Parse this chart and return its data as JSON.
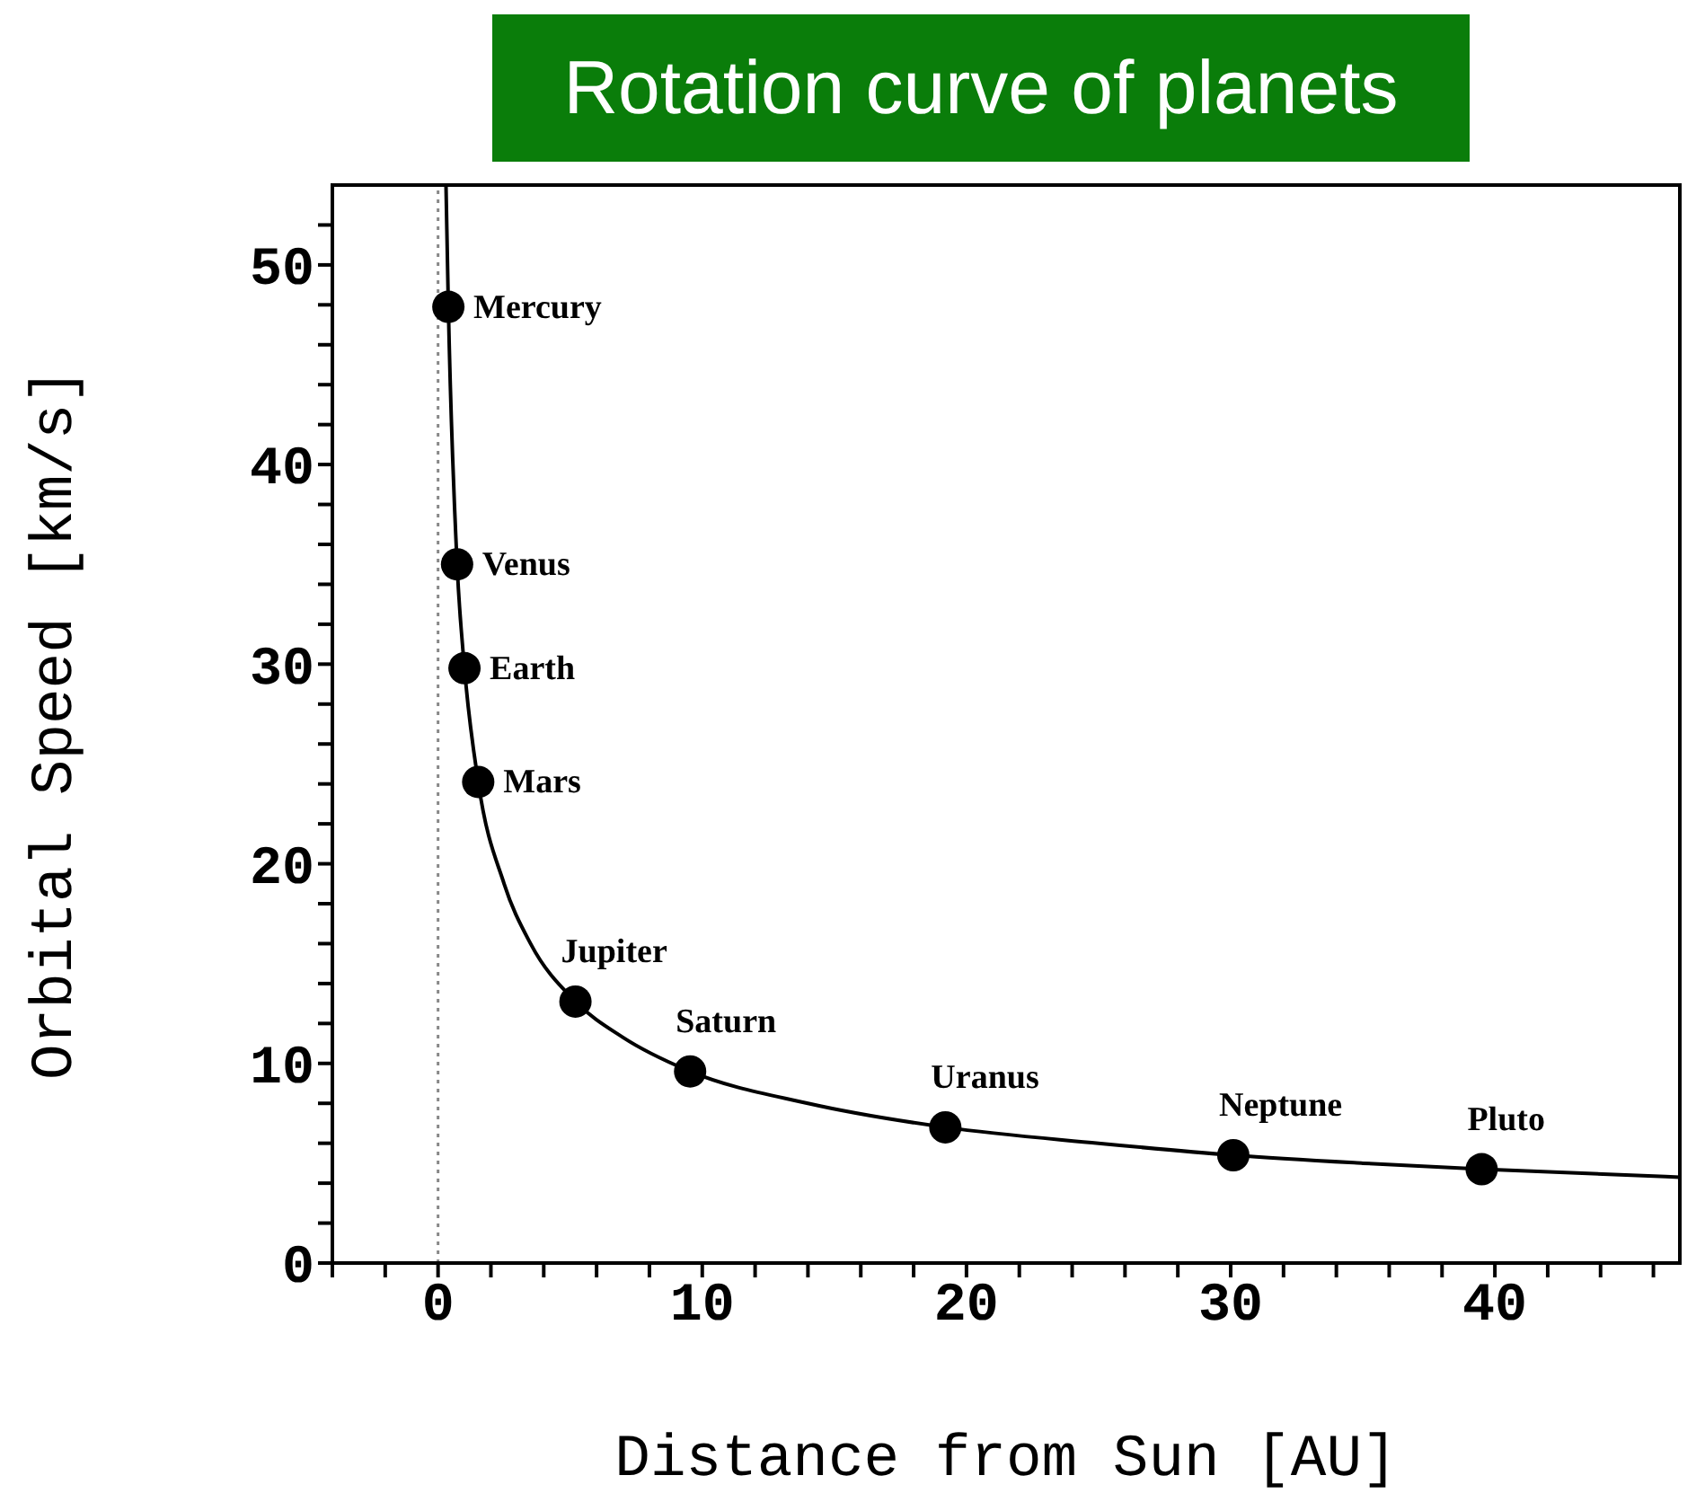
{
  "chart_data": {
    "type": "scatter",
    "title": "Rotation curve of planets",
    "xlabel": "Distance from Sun [AU]",
    "ylabel": "Orbital Speed [km/s]",
    "xlim": [
      -4,
      47
    ],
    "ylim": [
      0,
      54
    ],
    "xticks": [
      {
        "value": -4,
        "label": null
      },
      {
        "value": -2,
        "label": null
      },
      0,
      {
        "value": 2,
        "label": null
      },
      {
        "value": 4,
        "label": null
      },
      {
        "value": 6,
        "label": null
      },
      {
        "value": 8,
        "label": null
      },
      10,
      {
        "value": 12,
        "label": null
      },
      {
        "value": 14,
        "label": null
      },
      {
        "value": 16,
        "label": null
      },
      {
        "value": 18,
        "label": null
      },
      20,
      {
        "value": 22,
        "label": null
      },
      {
        "value": 24,
        "label": null
      },
      {
        "value": 26,
        "label": null
      },
      {
        "value": 28,
        "label": null
      },
      30,
      {
        "value": 32,
        "label": null
      },
      {
        "value": 34,
        "label": null
      },
      {
        "value": 36,
        "label": null
      },
      {
        "value": 38,
        "label": null
      },
      40,
      {
        "value": 42,
        "label": null
      },
      {
        "value": 44,
        "label": null
      },
      {
        "value": 46,
        "label": null
      }
    ],
    "yticks": [
      0,
      {
        "value": 2,
        "label": null
      },
      {
        "value": 4,
        "label": null
      },
      {
        "value": 6,
        "label": null
      },
      {
        "value": 8,
        "label": null
      },
      10,
      {
        "value": 12,
        "label": null
      },
      {
        "value": 14,
        "label": null
      },
      {
        "value": 16,
        "label": null
      },
      {
        "value": 18,
        "label": null
      },
      20,
      {
        "value": 22,
        "label": null
      },
      {
        "value": 24,
        "label": null
      },
      {
        "value": 26,
        "label": null
      },
      {
        "value": 28,
        "label": null
      },
      30,
      {
        "value": 32,
        "label": null
      },
      {
        "value": 34,
        "label": null
      },
      {
        "value": 36,
        "label": null
      },
      {
        "value": 38,
        "label": null
      },
      40,
      {
        "value": 42,
        "label": null
      },
      {
        "value": 44,
        "label": null
      },
      {
        "value": 46,
        "label": null
      },
      {
        "value": 48,
        "label": null
      },
      50,
      {
        "value": 52,
        "label": null
      }
    ],
    "marker": "circle",
    "series": [
      {
        "color": "#000000",
        "x": [
          0.39,
          0.72,
          1,
          1.52,
          5.2,
          9.54,
          19.2,
          30.1,
          39.5
        ],
        "values": [
          47.9,
          35,
          29.8,
          24.1,
          13.1,
          9.6,
          6.8,
          5.4,
          4.7
        ]
      },
      {
        "type": "line",
        "color": "#000000",
        "marker": "none",
        "x": [
          0.3,
          0.39,
          0.72,
          1,
          1.52,
          2.5,
          3.5,
          5.2,
          7,
          9.54,
          14,
          19.2,
          25,
          30.1,
          35,
          39.5,
          47
        ],
        "values": [
          54,
          47.9,
          35,
          29.8,
          24.1,
          19,
          16,
          13.1,
          11.3,
          9.6,
          8,
          6.8,
          6,
          5.4,
          5,
          4.7,
          4.3
        ]
      }
    ],
    "ref_lines": [
      {
        "axis": "x",
        "value": 0,
        "color": "#888888",
        "line_style": "dotted"
      }
    ],
    "annotations": [
      {
        "text": "Mercury",
        "x": 0.39,
        "y": 47.9
      },
      {
        "text": "Venus",
        "x": 0.72,
        "y": 35
      },
      {
        "text": "Earth",
        "x": 1,
        "y": 29.8
      },
      {
        "text": "Mars",
        "x": 1.52,
        "y": 24.1
      },
      {
        "text": "Jupiter",
        "x": 5.2,
        "y": 13.1
      },
      {
        "text": "Saturn",
        "x": 9.54,
        "y": 9.6
      },
      {
        "text": "Uranus",
        "x": 19.2,
        "y": 6.8
      },
      {
        "text": "Neptune",
        "x": 30.1,
        "y": 5.4
      },
      {
        "text": "Pluto",
        "x": 39.5,
        "y": 4.7
      }
    ]
  }
}
